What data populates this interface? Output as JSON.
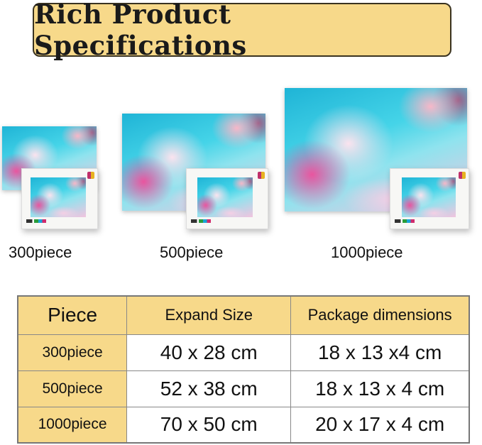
{
  "title": "Rich Product Specifications",
  "products": [
    {
      "label": "300piece"
    },
    {
      "label": "500piece"
    },
    {
      "label": "1000piece"
    }
  ],
  "table": {
    "headers": [
      "Piece",
      "Expand Size",
      "Package dimensions"
    ],
    "rows": [
      [
        "300piece",
        "40 x 28 cm",
        "18 x 13 x4 cm"
      ],
      [
        "500piece",
        "52 x 38 cm",
        "18 x 13 x 4 cm"
      ],
      [
        "1000piece",
        "70 x 50 cm",
        "20 x 17 x 4 cm"
      ]
    ]
  },
  "colors": {
    "accent": "#f7d98a"
  }
}
